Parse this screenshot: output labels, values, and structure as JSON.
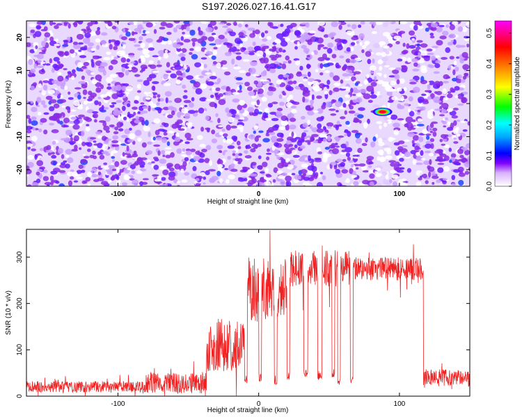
{
  "chart_data": [
    {
      "type": "heatmap",
      "title": "S197.2026.027.16.41.G17",
      "xlabel": "Height of straight line (km)",
      "ylabel": "Frequency (Hz)",
      "xlim": [
        -165,
        150
      ],
      "ylim": [
        -25,
        25
      ],
      "xticks": [
        -100,
        0,
        100
      ],
      "yticks": [
        -20,
        -10,
        0,
        10,
        20
      ],
      "colorbar": {
        "label": "Normalized spectral amplitude",
        "range": [
          0,
          0.54
        ],
        "ticks": [
          0,
          0.1,
          0.2,
          0.3,
          0.4,
          0.5
        ],
        "colormap": [
          "#ffffff",
          "#7f00ff",
          "#0000ff",
          "#00ffff",
          "#00ff00",
          "#ffff00",
          "#ff8000",
          "#ff0000",
          "#ff00ff"
        ]
      },
      "features": [
        {
          "label": "background speckle",
          "x_range": [
            -165,
            150
          ],
          "y_range": [
            -25,
            25
          ],
          "amplitude": 0.05
        },
        {
          "label": "clear band",
          "x_range": [
            83,
            93
          ],
          "y_range": [
            -25,
            25
          ],
          "amplitude": 0.01
        },
        {
          "label": "peak",
          "x": 88,
          "y": -2.5,
          "amplitude": 0.5
        }
      ]
    },
    {
      "type": "line",
      "xlabel": "Height of straight line (km)",
      "ylabel": "SNR (10 * v/v)",
      "xlim": [
        -165,
        150
      ],
      "ylim": [
        0,
        360
      ],
      "xticks": [
        -100,
        0,
        100
      ],
      "yticks": [
        0,
        100,
        200,
        300
      ],
      "series": [
        {
          "name": "SNR",
          "color": "#ee2222",
          "segments": [
            {
              "x": [
                -165,
                -80
              ],
              "mean": 20,
              "spread": 12
            },
            {
              "x": [
                -80,
                -37
              ],
              "mean": 28,
              "spread": 22
            },
            {
              "x": [
                -37,
                -10
              ],
              "mean": 110,
              "spread": 60
            },
            {
              "x": [
                -10,
                20
              ],
              "mean": 230,
              "spread": 70
            },
            {
              "x": [
                20,
                68
              ],
              "mean": 275,
              "spread": 40
            },
            {
              "x": [
                68,
                117
              ],
              "mean": 275,
              "spread": 25
            },
            {
              "x": [
                117,
                150
              ],
              "mean": 40,
              "spread": 18
            }
          ],
          "dropouts": [
            {
              "x": [
                -10,
                -8
              ],
              "value": 35
            },
            {
              "x": [
                0,
                2
              ],
              "value": 40
            },
            {
              "x": [
                11,
                13
              ],
              "value": 35
            },
            {
              "x": [
                20,
                22
              ],
              "value": 45
            },
            {
              "x": [
                32,
                35
              ],
              "value": 50
            },
            {
              "x": [
                42,
                45
              ],
              "value": 45
            },
            {
              "x": [
                52,
                54
              ],
              "value": 50
            },
            {
              "x": [
                56,
                58
              ],
              "value": 30
            },
            {
              "x": [
                65,
                67
              ],
              "value": 35
            }
          ]
        }
      ]
    }
  ]
}
